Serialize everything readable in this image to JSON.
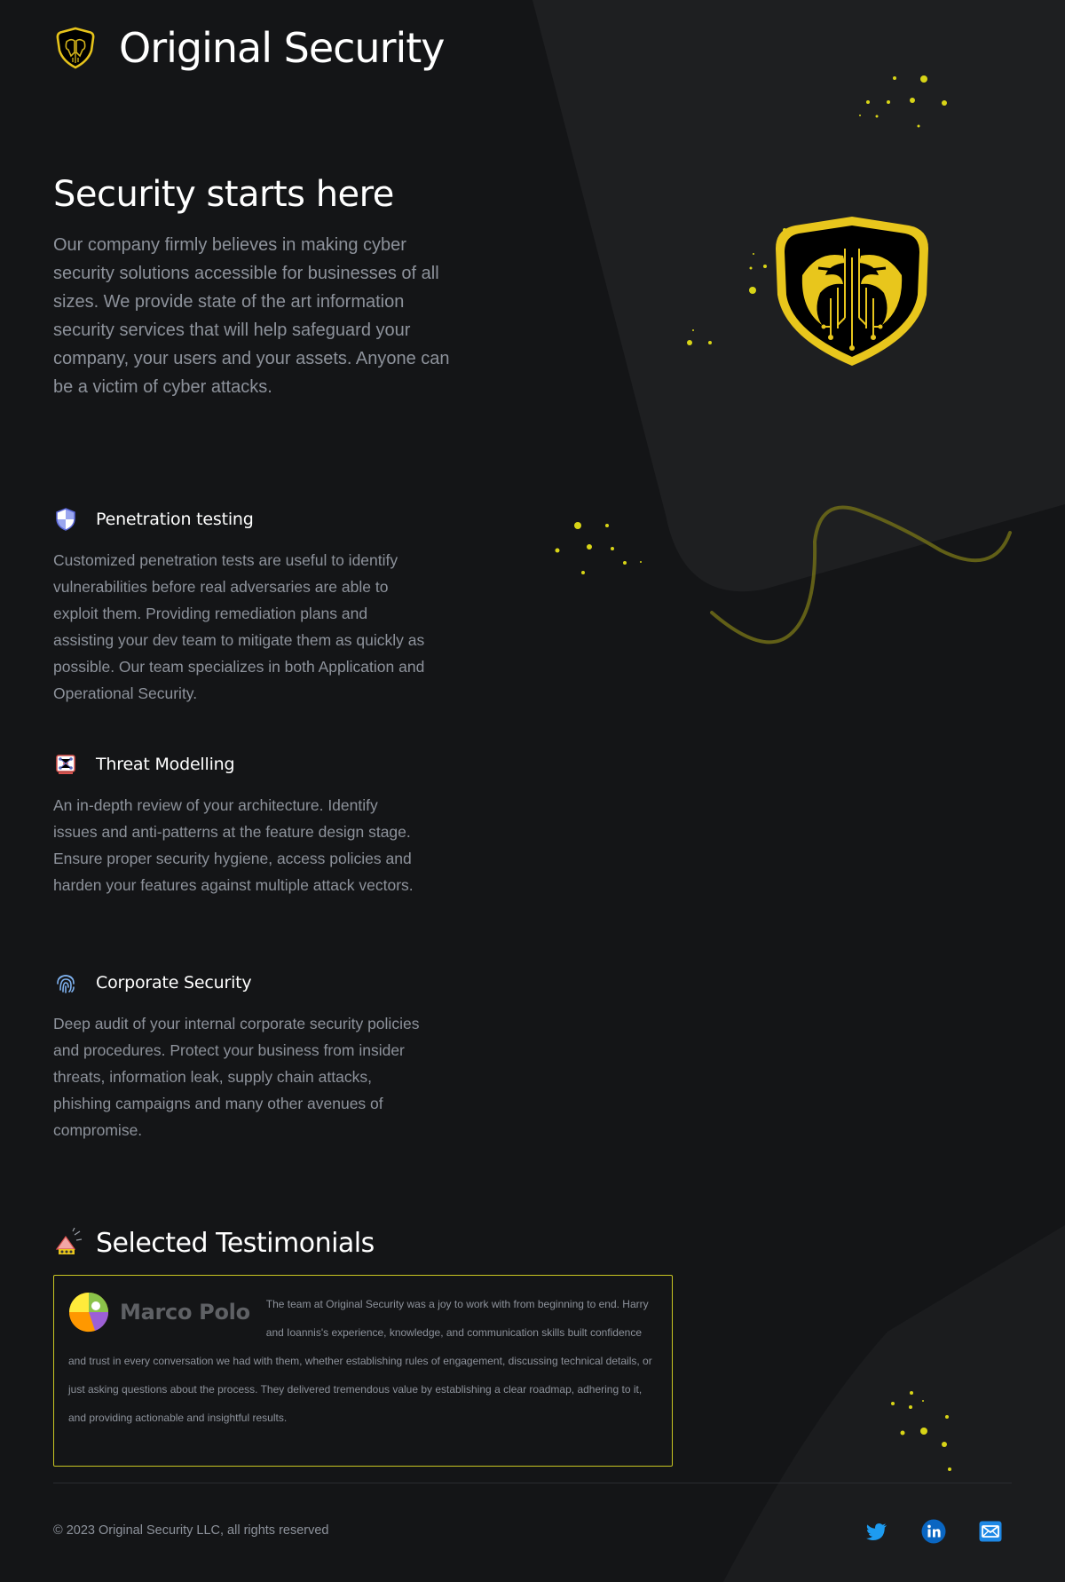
{
  "header": {
    "brand": "Original Security",
    "logo_icon": "eagle-shield-logo-icon"
  },
  "hero": {
    "title": "Security starts here",
    "body": "Our company firmly believes in making cyber security solutions accessible for businesses of all sizes. We provide state of the art information security services that will help safeguard your company, your users and your assets. Anyone can be a victim of cyber attacks.",
    "illustration": "eagle-circuit-shield-icon"
  },
  "services": [
    {
      "title": "Penetration testing",
      "icon": "shield-icon",
      "body": "Customized penetration tests are useful to identify vulnerabilities before real adversaries are able to exploit them. Providing remediation plans and assisting your dev team to mitigate them as quickly as possible. Our team specializes in both Application and Operational Security."
    },
    {
      "title": "Threat Modelling",
      "icon": "network-diagram-icon",
      "body": "An in-depth review of your architecture. Identify issues and anti-patterns at the feature design stage. Ensure proper security hygiene, access policies and harden your features against multiple attack vectors."
    },
    {
      "title": "Corporate Security",
      "icon": "fingerprint-icon",
      "body": "Deep audit of your internal corporate security policies and procedures. Protect your business from insider threats, information leak, supply chain attacks, phishing campaigns and many other avenues of compromise."
    }
  ],
  "testimonials": {
    "title": "Selected Testimonials",
    "icon": "megaphone-icon",
    "items": [
      {
        "client": "Marco Polo",
        "client_icon": "marco-polo-logo-icon",
        "quote": "The team at Original Security was a joy to work with from beginning to end. Harry and Ioannis's experience, knowledge, and communication skills built confidence and trust in every conversation we had with them, whether establishing rules of engagement, discussing technical details, or just asking questions about the process. They delivered tremendous value by establishing a clear roadmap, adhering to it, and providing actionable and insightful results."
      }
    ]
  },
  "footer": {
    "copyright": "© 2023 Original Security LLC, all rights reserved",
    "social": [
      {
        "icon": "twitter-icon",
        "color": "#1d9bf0"
      },
      {
        "icon": "linkedin-icon",
        "color": "#0a66c2"
      },
      {
        "icon": "email-icon",
        "color": "#1e88e5"
      }
    ]
  },
  "colors": {
    "background": "#141517",
    "accent": "#e8d41a",
    "text": "#8d929b",
    "heading": "#ffffff"
  }
}
